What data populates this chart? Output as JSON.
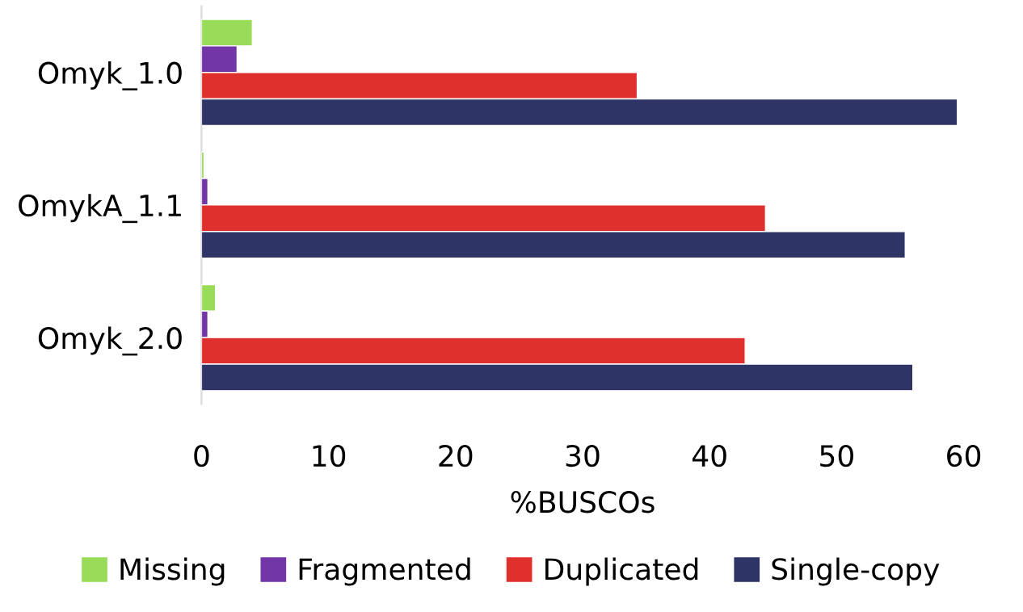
{
  "chart_data": {
    "type": "bar",
    "orientation": "horizontal",
    "xlabel": "%BUSCOs",
    "categories": [
      "Omyk_1.0",
      "OmykA_1.1",
      "Omyk_2.0"
    ],
    "series": [
      {
        "name": "Missing",
        "color": "#98dc5a",
        "values": [
          4.0,
          0.2,
          1.1
        ]
      },
      {
        "name": "Fragmented",
        "color": "#7336a6",
        "values": [
          2.8,
          0.5,
          0.5
        ]
      },
      {
        "name": "Duplicated",
        "color": "#e0302e",
        "values": [
          34.3,
          44.4,
          42.8
        ]
      },
      {
        "name": "Single-copy",
        "color": "#2e3566",
        "values": [
          59.5,
          55.4,
          56.0
        ]
      }
    ],
    "xlim": [
      0,
      60
    ],
    "xticks": [
      0,
      10,
      20,
      30,
      40,
      50,
      60
    ],
    "grid": false,
    "legend": "bottom"
  }
}
